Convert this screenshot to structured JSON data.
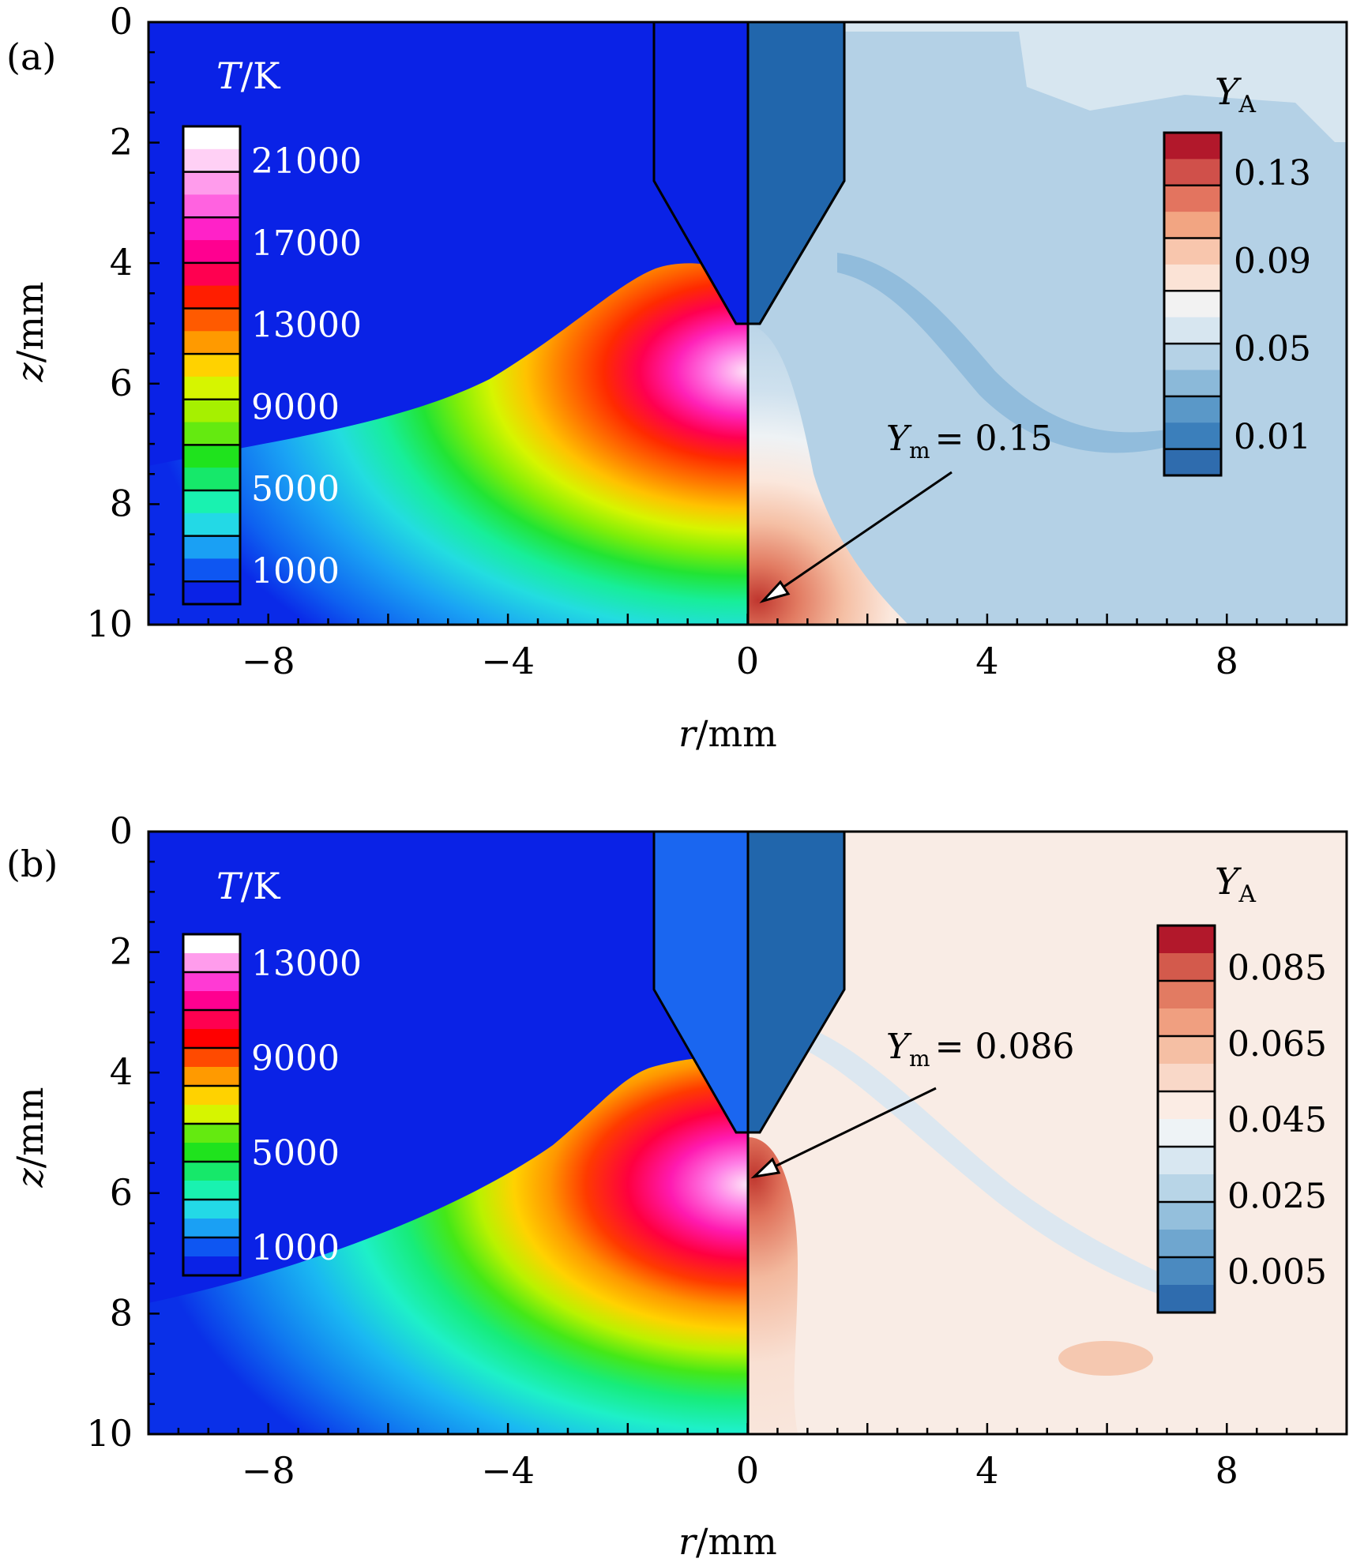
{
  "chart_data": [
    {
      "panel_label": "(a)",
      "type": "heatmap",
      "title": "",
      "xlabel": "r/mm",
      "ylabel": "z/mm",
      "xlim": [
        -10,
        10
      ],
      "ylim": [
        10,
        0
      ],
      "x_ticks": [
        "−8",
        "−4",
        "0",
        "4",
        "8"
      ],
      "x_tick_values": [
        -8,
        -4,
        0,
        4,
        8
      ],
      "y_ticks": [
        "0",
        "2",
        "4",
        "6",
        "8",
        "10"
      ],
      "y_tick_values": [
        0,
        2,
        4,
        6,
        8,
        10
      ],
      "left_field": {
        "quantity": "T/K",
        "colorbar_labels": [
          "21000",
          "17000",
          "13000",
          "9000",
          "5000",
          "1000"
        ],
        "levels": [
          1000,
          3000,
          5000,
          7000,
          9000,
          11000,
          13000,
          15000,
          17000,
          19000,
          21000
        ],
        "max_region": "near cathode tip, r≈0, z≈5.5–7"
      },
      "right_field": {
        "quantity": "Y_A",
        "colorbar_labels": [
          "0.13",
          "0.09",
          "0.05",
          "0.01"
        ],
        "levels": [
          0.01,
          0.03,
          0.05,
          0.07,
          0.09,
          0.11,
          0.13,
          0.15
        ]
      },
      "annotation": {
        "text": "Y_m = 0.15",
        "value": 0.15,
        "points_to": {
          "r": 0.2,
          "z": 9.6
        }
      },
      "electrode": {
        "tip_z": 5.0,
        "shoulder_z": 2.6,
        "half_width_top": 1.6,
        "half_width_tip": 0.2
      },
      "colors": {
        "t_min": "#0018ff",
        "t_max": "#ffe8fb",
        "ya_min": "#2f6cae",
        "ya_max": "#b2182b",
        "electrode": "#2166ac"
      }
    },
    {
      "panel_label": "(b)",
      "type": "heatmap",
      "title": "",
      "xlabel": "r/mm",
      "ylabel": "z/mm",
      "xlim": [
        -10,
        10
      ],
      "ylim": [
        10,
        0
      ],
      "x_ticks": [
        "−8",
        "−4",
        "0",
        "4",
        "8"
      ],
      "x_tick_values": [
        -8,
        -4,
        0,
        4,
        8
      ],
      "y_ticks": [
        "0",
        "2",
        "4",
        "6",
        "8",
        "10"
      ],
      "y_tick_values": [
        0,
        2,
        4,
        6,
        8,
        10
      ],
      "left_field": {
        "quantity": "T/K",
        "colorbar_labels": [
          "13000",
          "9000",
          "5000",
          "1000"
        ],
        "levels": [
          1000,
          3000,
          5000,
          7000,
          9000,
          11000,
          13000,
          15000
        ],
        "max_region": "near cathode tip, r≈0, z≈5.5–7"
      },
      "right_field": {
        "quantity": "Y_A",
        "colorbar_labels": [
          "0.085",
          "0.065",
          "0.045",
          "0.025",
          "0.005"
        ],
        "levels": [
          0.005,
          0.015,
          0.025,
          0.035,
          0.045,
          0.055,
          0.065,
          0.075,
          0.085
        ]
      },
      "annotation": {
        "text": "Y_m = 0.086",
        "value": 0.086,
        "points_to": {
          "r": 0.1,
          "z": 5.8
        }
      },
      "electrode": {
        "tip_z": 5.0,
        "shoulder_z": 2.6,
        "half_width_top": 1.6,
        "half_width_tip": 0.2
      },
      "colors": {
        "t_min": "#0018ff",
        "t_max": "#ffe8fb",
        "ya_min": "#2f6cae",
        "ya_max": "#b2182b",
        "electrode": "#2166ac"
      }
    }
  ],
  "text": {
    "a": {
      "panel": "(a)",
      "t_symbol": "T",
      "t_unit": "/K",
      "ya_symbol": "Y",
      "ya_sub": "A",
      "ann_symbol": "Y",
      "ann_sub": "m",
      "ann_value": "= 0.15",
      "x_symbol": "r",
      "x_unit": "/mm",
      "y_symbol": "z",
      "y_unit": "/mm",
      "xticks": [
        "−8",
        "−4",
        "0",
        "4",
        "8"
      ],
      "yticks": [
        "0",
        "2",
        "4",
        "6",
        "8",
        "10"
      ],
      "t_cb": [
        "21000",
        "17000",
        "13000",
        "9000",
        "5000",
        "1000"
      ],
      "ya_cb": [
        "0.13",
        "0.09",
        "0.05",
        "0.01"
      ]
    },
    "b": {
      "panel": "(b)",
      "t_symbol": "T",
      "t_unit": "/K",
      "ya_symbol": "Y",
      "ya_sub": "A",
      "ann_symbol": "Y",
      "ann_sub": "m",
      "ann_value": "= 0.086",
      "x_symbol": "r",
      "x_unit": "/mm",
      "y_symbol": "z",
      "y_unit": "/mm",
      "xticks": [
        "−8",
        "−4",
        "0",
        "4",
        "8"
      ],
      "yticks": [
        "0",
        "2",
        "4",
        "6",
        "8",
        "10"
      ],
      "t_cb": [
        "13000",
        "9000",
        "5000",
        "1000"
      ],
      "ya_cb": [
        "0.085",
        "0.065",
        "0.045",
        "0.025",
        "0.005"
      ]
    }
  },
  "palettes": {
    "temperature_a": [
      "#0a22e6",
      "#0e56f2",
      "#1aa0f4",
      "#23d9e6",
      "#19f2b0",
      "#16e86a",
      "#1fe31d",
      "#64ea10",
      "#a6f000",
      "#d6f500",
      "#ffd200",
      "#ff9a00",
      "#ff5a00",
      "#ff1e00",
      "#ff0050",
      "#ff0090",
      "#ff22c8",
      "#ff62e0",
      "#ff9cec",
      "#ffd0f5",
      "#ffffff"
    ],
    "temperature_b": [
      "#0a22e6",
      "#0e56f2",
      "#1aa0f4",
      "#23d9e6",
      "#19f2b0",
      "#16e86a",
      "#1fe31d",
      "#64ea10",
      "#d6f500",
      "#ffd200",
      "#ff9a00",
      "#ff4a00",
      "#ff0000",
      "#ff0050",
      "#ff0090",
      "#ff3ad4",
      "#ff9cec",
      "#ffffff"
    ],
    "ya_a": [
      "#2f6cae",
      "#3b7fbb",
      "#5a98c8",
      "#8bb9d9",
      "#b5d2e6",
      "#d7e6f0",
      "#f2f2f2",
      "#fbe3d6",
      "#f8c6ad",
      "#f2a582",
      "#e3745f",
      "#d0504a",
      "#b2182b"
    ],
    "ya_b": [
      "#2f6cae",
      "#4b8ac0",
      "#6fa6cf",
      "#94bfdc",
      "#b8d5e7",
      "#d8e7f1",
      "#eef3f6",
      "#fbece4",
      "#f9d8c8",
      "#f5bfa4",
      "#f09f80",
      "#e27b62",
      "#d35a4c",
      "#b2182b"
    ]
  }
}
